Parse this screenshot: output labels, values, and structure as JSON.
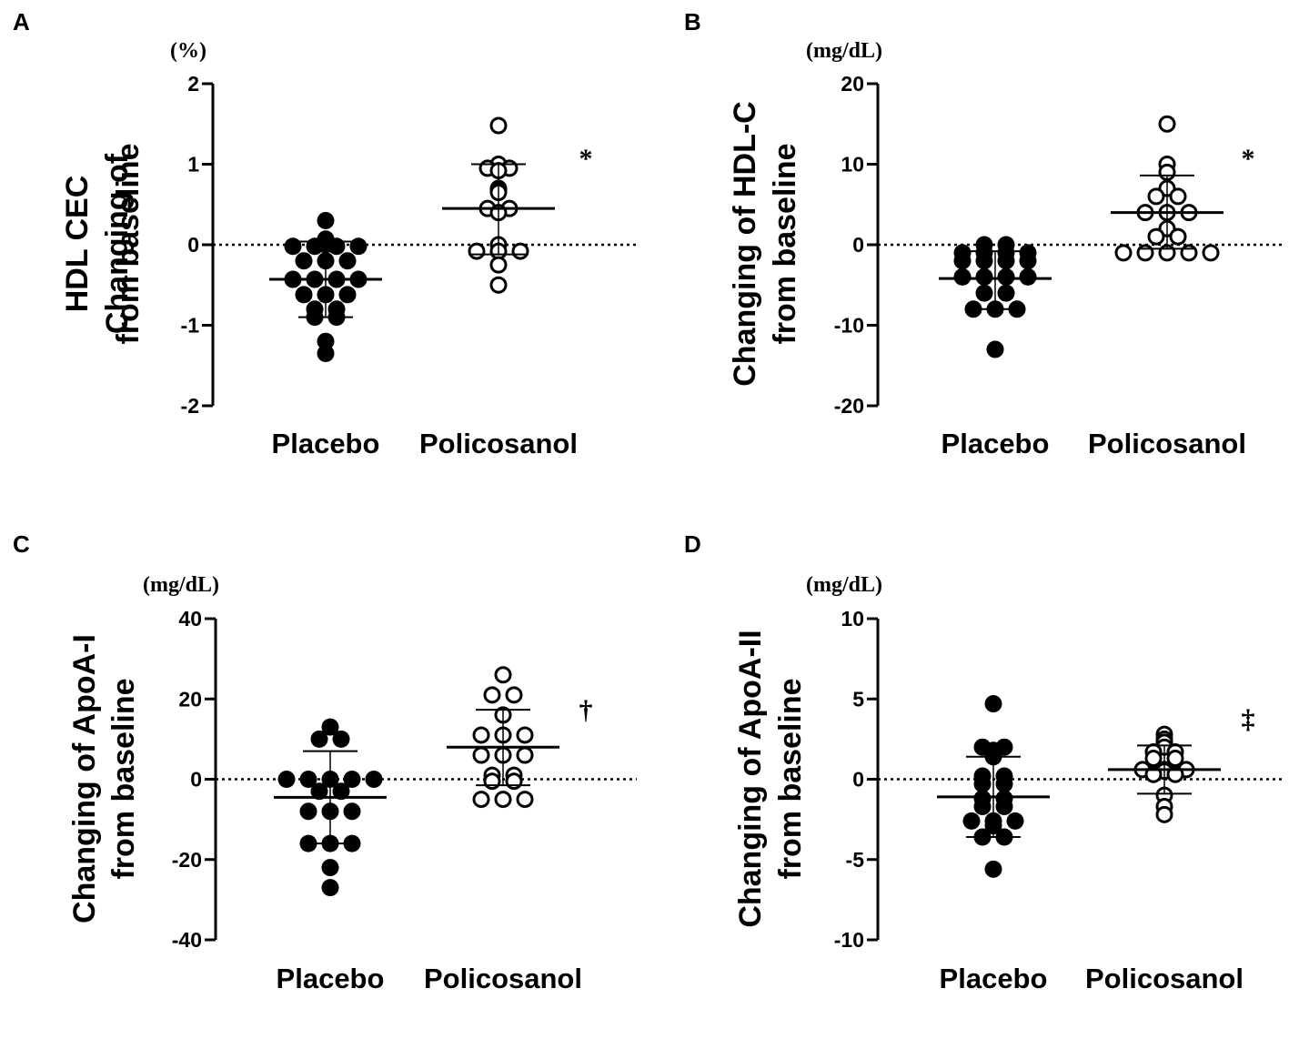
{
  "chart_data": [
    {
      "type": "scatter",
      "panel": "A",
      "unit": "(%)",
      "ylabel_lines": [
        "Changing of",
        "HDL CEC",
        "from baseline"
      ],
      "yticks": [
        2,
        1,
        0,
        -1,
        -2
      ],
      "ylim": [
        -2,
        2
      ],
      "categories": [
        "Placebo",
        "Policosanol"
      ],
      "significance": "*",
      "series": [
        {
          "name": "Placebo",
          "marker": "filled",
          "mean": -0.43,
          "sd_upper": 0.04,
          "sd_lower": -0.9,
          "values": [
            0.3,
            0.07,
            -0.02,
            -0.02,
            -0.02,
            -0.02,
            0.0,
            -0.2,
            -0.2,
            -0.2,
            -0.43,
            -0.43,
            -0.43,
            -0.43,
            -0.62,
            -0.62,
            -0.62,
            -0.8,
            -0.8,
            -0.9,
            -0.9,
            -1.2,
            -1.35
          ]
        },
        {
          "name": "Policosanol",
          "marker": "open",
          "mean": 0.45,
          "sd_upper": 1.0,
          "sd_lower": -0.12,
          "values": [
            1.48,
            1.0,
            0.95,
            0.92,
            0.95,
            0.7,
            0.68,
            0.65,
            0.45,
            0.45,
            0.4,
            0.0,
            -0.08,
            -0.08,
            -0.08,
            -0.25,
            -0.5
          ]
        }
      ]
    },
    {
      "type": "scatter",
      "panel": "B",
      "unit": "(mg/dL)",
      "ylabel_lines": [
        "Changing of HDL-C",
        "from baseline"
      ],
      "yticks": [
        20,
        10,
        0,
        -10,
        -20
      ],
      "ylim": [
        -20,
        20
      ],
      "categories": [
        "Placebo",
        "Policosanol"
      ],
      "significance": "*",
      "series": [
        {
          "name": "Placebo",
          "marker": "filled",
          "mean": -4.2,
          "sd_upper": -0.8,
          "sd_lower": -8.0,
          "values": [
            0.0,
            0.0,
            -1.0,
            -1.0,
            -1.0,
            -1.0,
            -2.0,
            -2.0,
            -2.0,
            -2.0,
            -4.0,
            -4.0,
            -4.0,
            -4.0,
            -6.0,
            -6.0,
            -8.0,
            -8.0,
            -8.0,
            -13.0
          ]
        },
        {
          "name": "Policosanol",
          "marker": "open",
          "mean": 4.0,
          "sd_upper": 8.6,
          "sd_lower": -0.5,
          "values": [
            15.0,
            10.0,
            9.0,
            7.0,
            6.0,
            6.0,
            4.0,
            4.0,
            4.0,
            2.0,
            1.0,
            1.0,
            -1.0,
            -1.0,
            -1.0,
            -1.0,
            -1.0
          ]
        }
      ]
    },
    {
      "type": "scatter",
      "panel": "C",
      "unit": "(mg/dL)",
      "ylabel_lines": [
        "Changing of ApoA-I",
        "from baseline"
      ],
      "yticks": [
        40,
        20,
        0,
        -20,
        -40
      ],
      "ylim": [
        -40,
        40
      ],
      "categories": [
        "Placebo",
        "Policosanol"
      ],
      "significance": "†",
      "series": [
        {
          "name": "Placebo",
          "marker": "filled",
          "mean": -4.5,
          "sd_upper": 7.0,
          "sd_lower": -16.0,
          "values": [
            13.0,
            10.0,
            10.0,
            0.0,
            0.0,
            0.0,
            0.0,
            0.0,
            -3.0,
            -3.0,
            -8.0,
            -8.0,
            -8.0,
            -16.0,
            -16.0,
            -16.0,
            -22.0,
            -27.0
          ]
        },
        {
          "name": "Policosanol",
          "marker": "open",
          "mean": 8.0,
          "sd_upper": 17.3,
          "sd_lower": -1.5,
          "values": [
            26.0,
            21.0,
            21.0,
            16.0,
            11.0,
            11.0,
            11.0,
            6.0,
            6.0,
            6.0,
            1.0,
            1.0,
            -0.5,
            -0.5,
            -5.0,
            -5.0,
            -5.0
          ]
        }
      ]
    },
    {
      "type": "scatter",
      "panel": "D",
      "unit": "(mg/dL)",
      "ylabel_lines": [
        "Changing of ApoA-II",
        "from baseline"
      ],
      "yticks": [
        10,
        5,
        0,
        -5,
        -10
      ],
      "ylim": [
        -10,
        10
      ],
      "categories": [
        "Placebo",
        "Policosanol"
      ],
      "significance": "‡",
      "series": [
        {
          "name": "Placebo",
          "marker": "filled",
          "mean": -1.1,
          "sd_upper": 1.4,
          "sd_lower": -3.6,
          "values": [
            4.7,
            2.0,
            2.0,
            1.8,
            1.4,
            0.2,
            0.2,
            -0.3,
            -0.3,
            -1.2,
            -1.2,
            -1.7,
            -1.7,
            -2.6,
            -2.6,
            -2.6,
            -2.9,
            -3.6,
            -3.6,
            -5.6
          ]
        },
        {
          "name": "Policosanol",
          "marker": "open",
          "mean": 0.6,
          "sd_upper": 2.1,
          "sd_lower": -0.9,
          "values": [
            2.8,
            2.5,
            2.3,
            2.0,
            1.7,
            1.7,
            1.3,
            1.3,
            0.6,
            0.6,
            0.6,
            0.5,
            0.3,
            0.3,
            -1.0,
            -1.7,
            -2.2
          ]
        }
      ]
    }
  ]
}
